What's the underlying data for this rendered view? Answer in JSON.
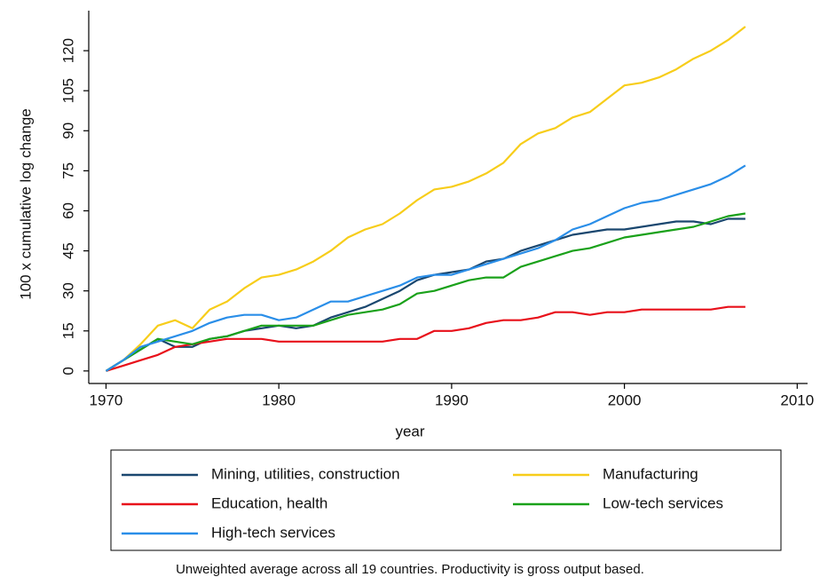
{
  "chart_data": {
    "type": "line",
    "x": [
      1970,
      1971,
      1972,
      1973,
      1974,
      1975,
      1976,
      1977,
      1978,
      1979,
      1980,
      1981,
      1982,
      1983,
      1984,
      1985,
      1986,
      1987,
      1988,
      1989,
      1990,
      1991,
      1992,
      1993,
      1994,
      1995,
      1996,
      1997,
      1998,
      1999,
      2000,
      2001,
      2002,
      2003,
      2004,
      2005,
      2006,
      2007
    ],
    "series": [
      {
        "name": "Mining, utilities, construction",
        "color": "#1a476f",
        "values": [
          0,
          4,
          8,
          12,
          9,
          9,
          12,
          13,
          15,
          16,
          17,
          16,
          17,
          20,
          22,
          24,
          27,
          30,
          34,
          36,
          37,
          38,
          41,
          42,
          45,
          47,
          49,
          51,
          52,
          53,
          53,
          54,
          55,
          56,
          56,
          55,
          57,
          57
        ]
      },
      {
        "name": "Manufacturing",
        "color": "#f7cd1a",
        "values": [
          0,
          4,
          10,
          17,
          19,
          16,
          23,
          26,
          31,
          35,
          36,
          38,
          41,
          45,
          50,
          53,
          55,
          59,
          64,
          68,
          69,
          71,
          74,
          78,
          85,
          89,
          91,
          95,
          97,
          102,
          107,
          108,
          110,
          113,
          117,
          120,
          124,
          129
        ]
      },
      {
        "name": "Education, health",
        "color": "#e8101a",
        "values": [
          0,
          2,
          4,
          6,
          9,
          10,
          11,
          12,
          12,
          12,
          11,
          11,
          11,
          11,
          11,
          11,
          11,
          12,
          12,
          15,
          15,
          16,
          18,
          19,
          19,
          20,
          22,
          22,
          21,
          22,
          22,
          23,
          23,
          23,
          23,
          23,
          24,
          24
        ]
      },
      {
        "name": "Low-tech services",
        "color": "#1aa11a",
        "values": [
          0,
          4,
          8,
          12,
          11,
          10,
          12,
          13,
          15,
          17,
          17,
          17,
          17,
          19,
          21,
          22,
          23,
          25,
          29,
          30,
          32,
          34,
          35,
          35,
          39,
          41,
          43,
          45,
          46,
          48,
          50,
          51,
          52,
          53,
          54,
          56,
          58,
          59
        ]
      },
      {
        "name": "High-tech services",
        "color": "#2a8ee8",
        "values": [
          0,
          4,
          9,
          11,
          13,
          15,
          18,
          20,
          21,
          21,
          19,
          20,
          23,
          26,
          26,
          28,
          30,
          32,
          35,
          36,
          36,
          38,
          40,
          42,
          44,
          46,
          49,
          53,
          55,
          58,
          61,
          63,
          64,
          66,
          68,
          70,
          73,
          77
        ]
      }
    ],
    "x_label": "year",
    "y_label": "100 x cumulative log change",
    "xlim": [
      1969,
      2010.6
    ],
    "xticks": [
      1970,
      1980,
      1990,
      2000,
      2010
    ],
    "ylim": [
      -4.7,
      135
    ],
    "yticks": [
      0,
      15,
      30,
      45,
      60,
      75,
      90,
      105,
      120
    ],
    "note": "Unweighted average across all 19 countries. Productivity is gross output based."
  }
}
